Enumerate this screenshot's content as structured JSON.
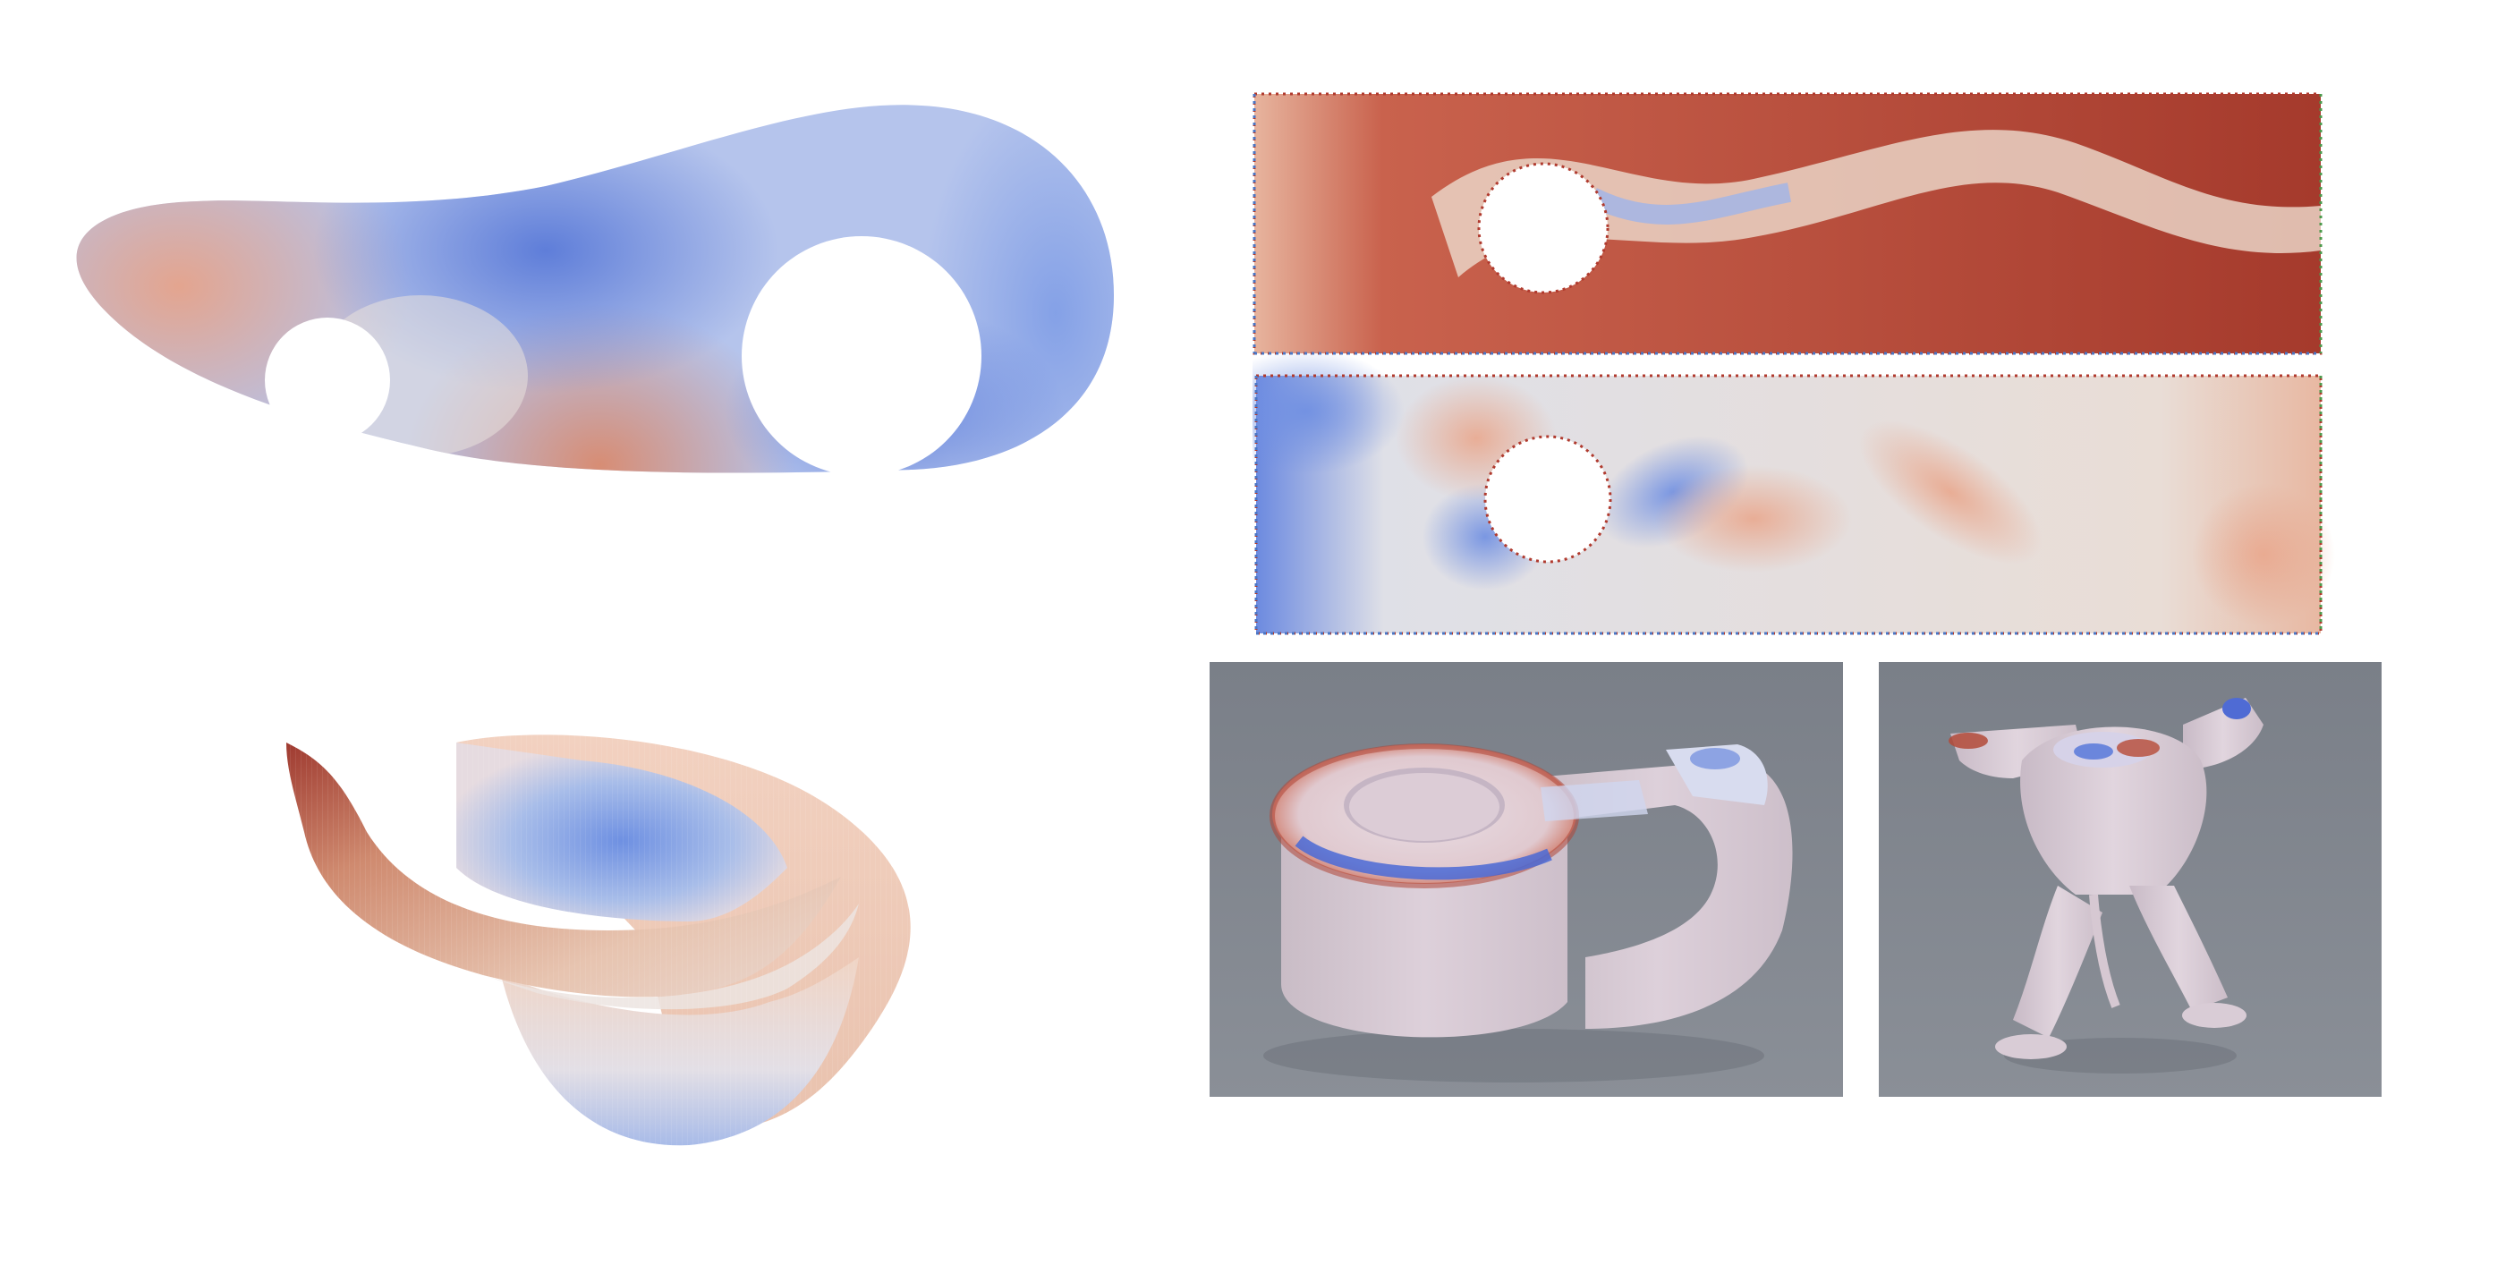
{
  "colormap": {
    "low": "#3b5bd0",
    "mid": "#e6e3e1",
    "high": "#b03a2e"
  },
  "render_background": "#7d828b",
  "mesh_color": "#d9c9d6",
  "panels": [
    {
      "id": "eyelet-plate",
      "kind": "2d-field-heatmap"
    },
    {
      "id": "cylinder-flow-top",
      "kind": "2d-field-heatmap"
    },
    {
      "id": "cylinder-flow-bottom",
      "kind": "2d-field-heatmap"
    },
    {
      "id": "saddle-surface",
      "kind": "3d-surface-plot"
    },
    {
      "id": "hook-mesh-render",
      "kind": "3d-render"
    },
    {
      "id": "creature-mesh-render",
      "kind": "3d-render"
    }
  ]
}
